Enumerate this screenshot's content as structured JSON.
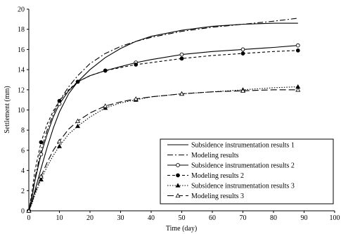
{
  "chart_data": {
    "type": "line",
    "xlabel": "Time (day)",
    "ylabel": "Settlement (mm)",
    "xlim": [
      0,
      100
    ],
    "ylim": [
      0,
      20
    ],
    "x_ticks": [
      0,
      10,
      20,
      30,
      40,
      50,
      60,
      70,
      80,
      90,
      100
    ],
    "y_ticks": [
      0,
      2,
      4,
      6,
      8,
      10,
      12,
      14,
      16,
      18,
      20
    ],
    "grid": false,
    "legend_position": "bottom-right",
    "series": [
      {
        "name": "Subsidence instrumentation results 1",
        "style": "solid",
        "marker": "none",
        "color": "#000000",
        "x": [
          0,
          1,
          2,
          4,
          6,
          8,
          10,
          13,
          16,
          20,
          25,
          30,
          35,
          40,
          50,
          60,
          70,
          80,
          88
        ],
        "y": [
          0,
          0.9,
          2.0,
          4.2,
          6.3,
          8.2,
          9.8,
          11.6,
          12.8,
          14.0,
          15.2,
          16.1,
          16.8,
          17.3,
          17.9,
          18.3,
          18.5,
          18.6,
          18.6
        ]
      },
      {
        "name": "Modeling results",
        "style": "dashdot",
        "marker": "none",
        "color": "#000000",
        "x": [
          0,
          1,
          2,
          4,
          6,
          8,
          10,
          13,
          16,
          20,
          25,
          30,
          35,
          40,
          50,
          60,
          70,
          80,
          88
        ],
        "y": [
          0,
          1.5,
          3.2,
          6.0,
          8.0,
          9.6,
          10.9,
          12.3,
          13.4,
          14.6,
          15.6,
          16.3,
          16.8,
          17.2,
          17.8,
          18.2,
          18.5,
          18.8,
          19.1
        ]
      },
      {
        "name": "Subsidence instrumentation results 2",
        "style": "solid",
        "marker": "open-circle",
        "color": "#000000",
        "x": [
          0,
          1,
          2,
          4,
          6,
          8,
          10,
          13,
          16,
          20,
          25,
          30,
          35,
          40,
          50,
          60,
          70,
          80,
          88
        ],
        "y": [
          0,
          1.3,
          3.0,
          5.6,
          7.6,
          9.3,
          10.6,
          11.9,
          12.8,
          13.4,
          13.9,
          14.3,
          14.7,
          15.0,
          15.5,
          15.8,
          16.0,
          16.2,
          16.4
        ]
      },
      {
        "name": "Modeling results 2",
        "style": "dashed",
        "marker": "filled-circle",
        "color": "#000000",
        "x": [
          0,
          1,
          2,
          4,
          6,
          8,
          10,
          13,
          16,
          20,
          25,
          30,
          35,
          40,
          50,
          60,
          70,
          80,
          88
        ],
        "y": [
          0,
          1.8,
          4.0,
          6.8,
          8.6,
          9.9,
          10.9,
          12.0,
          12.8,
          13.4,
          13.9,
          14.2,
          14.5,
          14.7,
          15.1,
          15.4,
          15.6,
          15.8,
          15.9
        ]
      },
      {
        "name": "Subsidence instrumentation results 3",
        "style": "dotted",
        "marker": "filled-triangle",
        "color": "#000000",
        "x": [
          0,
          1,
          2,
          4,
          6,
          8,
          10,
          13,
          16,
          20,
          25,
          30,
          35,
          40,
          50,
          60,
          70,
          80,
          88
        ],
        "y": [
          0,
          0.7,
          1.6,
          3.1,
          4.4,
          5.5,
          6.4,
          7.6,
          8.4,
          9.3,
          10.2,
          10.7,
          11.0,
          11.3,
          11.6,
          11.8,
          12.0,
          12.2,
          12.3
        ]
      },
      {
        "name": "Modeling results 3",
        "style": "longdash",
        "marker": "open-triangle",
        "color": "#000000",
        "x": [
          0,
          1,
          2,
          4,
          6,
          8,
          10,
          13,
          16,
          20,
          25,
          30,
          35,
          40,
          50,
          60,
          70,
          80,
          88
        ],
        "y": [
          0,
          0.8,
          1.8,
          3.4,
          4.8,
          6.0,
          6.9,
          8.1,
          8.9,
          9.7,
          10.4,
          10.8,
          11.1,
          11.3,
          11.6,
          11.8,
          11.9,
          12.0,
          12.0
        ]
      }
    ]
  }
}
